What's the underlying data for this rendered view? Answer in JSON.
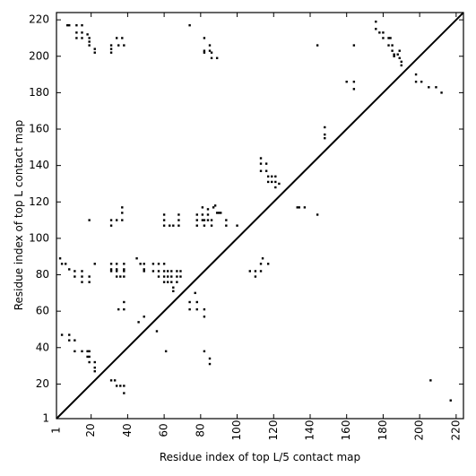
{
  "chart_data": {
    "type": "scatter",
    "xlabel": "Residue index of top L/5 contact map",
    "ylabel": "Residue index of top L contact map",
    "xlim": [
      1,
      224
    ],
    "ylim": [
      1,
      224
    ],
    "x_ticks": [
      1,
      20,
      40,
      60,
      80,
      100,
      120,
      140,
      160,
      180,
      200,
      220
    ],
    "y_ticks": [
      1,
      20,
      40,
      60,
      80,
      100,
      120,
      140,
      160,
      180,
      200,
      220
    ],
    "grid": false,
    "diagonal": true,
    "marker": "square",
    "colors": {
      "points": "#000000",
      "axes": "#000000",
      "background": "#ffffff"
    },
    "series": [
      {
        "role": "top L contacts (upper-left)",
        "points": [
          [
            7,
            217
          ],
          [
            8,
            217
          ],
          [
            12,
            217
          ],
          [
            15,
            217
          ],
          [
            12,
            213
          ],
          [
            15,
            213
          ],
          [
            18,
            212
          ],
          [
            12,
            210
          ],
          [
            15,
            210
          ],
          [
            19,
            210
          ],
          [
            19,
            208
          ],
          [
            19,
            206
          ],
          [
            22,
            204
          ],
          [
            22,
            202
          ],
          [
            31,
            206
          ],
          [
            31,
            204
          ],
          [
            31,
            202
          ],
          [
            34,
            210
          ],
          [
            37,
            210
          ],
          [
            35,
            206
          ],
          [
            38,
            206
          ],
          [
            74,
            217
          ],
          [
            82,
            210
          ],
          [
            82,
            203
          ],
          [
            82,
            202
          ],
          [
            85,
            206
          ],
          [
            85,
            203
          ],
          [
            86,
            202
          ],
          [
            86,
            199
          ],
          [
            89,
            199
          ],
          [
            3,
            89
          ],
          [
            4,
            86
          ],
          [
            6,
            86
          ],
          [
            8,
            83
          ],
          [
            11,
            82
          ],
          [
            11,
            79
          ],
          [
            15,
            82
          ],
          [
            15,
            79
          ],
          [
            15,
            76
          ],
          [
            19,
            79
          ],
          [
            19,
            76
          ],
          [
            22,
            86
          ],
          [
            31,
            86
          ],
          [
            31,
            83
          ],
          [
            31,
            82
          ],
          [
            34,
            86
          ],
          [
            34,
            83
          ],
          [
            34,
            82
          ],
          [
            34,
            79
          ],
          [
            36,
            79
          ],
          [
            38,
            86
          ],
          [
            38,
            83
          ],
          [
            38,
            82
          ],
          [
            38,
            79
          ],
          [
            45,
            89
          ],
          [
            47,
            86
          ],
          [
            49,
            86
          ],
          [
            49,
            83
          ],
          [
            49,
            82
          ],
          [
            54,
            86
          ],
          [
            54,
            82
          ],
          [
            57,
            86
          ],
          [
            57,
            82
          ],
          [
            57,
            79
          ],
          [
            60,
            86
          ],
          [
            60,
            82
          ],
          [
            60,
            79
          ],
          [
            60,
            76
          ],
          [
            62,
            82
          ],
          [
            62,
            79
          ],
          [
            62,
            76
          ],
          [
            64,
            82
          ],
          [
            64,
            79
          ],
          [
            64,
            76
          ],
          [
            65,
            73
          ],
          [
            65,
            71
          ],
          [
            67,
            82
          ],
          [
            67,
            79
          ],
          [
            67,
            76
          ],
          [
            69,
            82
          ],
          [
            69,
            79
          ],
          [
            19,
            110
          ],
          [
            31,
            110
          ],
          [
            31,
            107
          ],
          [
            34,
            110
          ],
          [
            37,
            117
          ],
          [
            37,
            114
          ],
          [
            37,
            110
          ],
          [
            60,
            113
          ],
          [
            60,
            110
          ],
          [
            60,
            107
          ],
          [
            63,
            107
          ],
          [
            65,
            107
          ],
          [
            68,
            113
          ],
          [
            68,
            110
          ],
          [
            68,
            107
          ],
          [
            78,
            113
          ],
          [
            78,
            110
          ],
          [
            78,
            107
          ],
          [
            81,
            117
          ],
          [
            81,
            113
          ],
          [
            81,
            110
          ],
          [
            82,
            110
          ],
          [
            82,
            107
          ],
          [
            84,
            116
          ],
          [
            84,
            113
          ],
          [
            84,
            110
          ],
          [
            86,
            107
          ],
          [
            86,
            110
          ],
          [
            87,
            117
          ],
          [
            88,
            118
          ],
          [
            89,
            114
          ],
          [
            90,
            114
          ],
          [
            91,
            114
          ],
          [
            94,
            110
          ],
          [
            94,
            107
          ],
          [
            100,
            107
          ],
          [
            113,
            144
          ],
          [
            113,
            141
          ],
          [
            113,
            137
          ],
          [
            116,
            141
          ],
          [
            116,
            137
          ],
          [
            117,
            134
          ],
          [
            117,
            131
          ],
          [
            119,
            134
          ],
          [
            119,
            131
          ],
          [
            121,
            134
          ],
          [
            121,
            131
          ],
          [
            121,
            128
          ],
          [
            123,
            130
          ],
          [
            133,
            117
          ],
          [
            134,
            117
          ],
          [
            137,
            117
          ],
          [
            144,
            113
          ],
          [
            107,
            82
          ],
          [
            110,
            82
          ],
          [
            110,
            79
          ],
          [
            113,
            86
          ],
          [
            113,
            82
          ],
          [
            114,
            89
          ],
          [
            117,
            86
          ],
          [
            148,
            161
          ],
          [
            148,
            157
          ],
          [
            148,
            155
          ],
          [
            144,
            206
          ],
          [
            160,
            186
          ],
          [
            164,
            186
          ],
          [
            164,
            182
          ],
          [
            164,
            206
          ],
          [
            176,
            219
          ],
          [
            176,
            215
          ],
          [
            178,
            213
          ],
          [
            180,
            213
          ],
          [
            180,
            210
          ],
          [
            183,
            210
          ],
          [
            183,
            206
          ],
          [
            185,
            206
          ],
          [
            185,
            203
          ],
          [
            186,
            201
          ],
          [
            188,
            201
          ],
          [
            189,
            203
          ],
          [
            189,
            199
          ],
          [
            190,
            197
          ],
          [
            190,
            195
          ],
          [
            184,
            210
          ],
          [
            186,
            200
          ],
          [
            198,
            190
          ],
          [
            198,
            186
          ],
          [
            201,
            186
          ],
          [
            205,
            183
          ],
          [
            209,
            183
          ],
          [
            212,
            180
          ],
          [
            4,
            47
          ],
          [
            8,
            47
          ],
          [
            8,
            44
          ],
          [
            11,
            44
          ],
          [
            11,
            38
          ],
          [
            15,
            38
          ],
          [
            18,
            38
          ],
          [
            19,
            38
          ],
          [
            18,
            35
          ],
          [
            19,
            35
          ],
          [
            19,
            32
          ],
          [
            22,
            32
          ],
          [
            22,
            29
          ],
          [
            22,
            27
          ],
          [
            31,
            22
          ],
          [
            33,
            22
          ],
          [
            34,
            19
          ],
          [
            36,
            19
          ],
          [
            38,
            19
          ],
          [
            38,
            15
          ],
          [
            35,
            61
          ],
          [
            38,
            61
          ],
          [
            38,
            65
          ],
          [
            46,
            54
          ],
          [
            49,
            57
          ],
          [
            56,
            49
          ],
          [
            61,
            38
          ],
          [
            74,
            65
          ],
          [
            74,
            61
          ],
          [
            77,
            70
          ],
          [
            78,
            65
          ],
          [
            78,
            61
          ],
          [
            82,
            61
          ],
          [
            82,
            57
          ],
          [
            82,
            38
          ],
          [
            85,
            34
          ],
          [
            85,
            31
          ],
          [
            206,
            22
          ],
          [
            217,
            11
          ]
        ]
      }
    ]
  }
}
